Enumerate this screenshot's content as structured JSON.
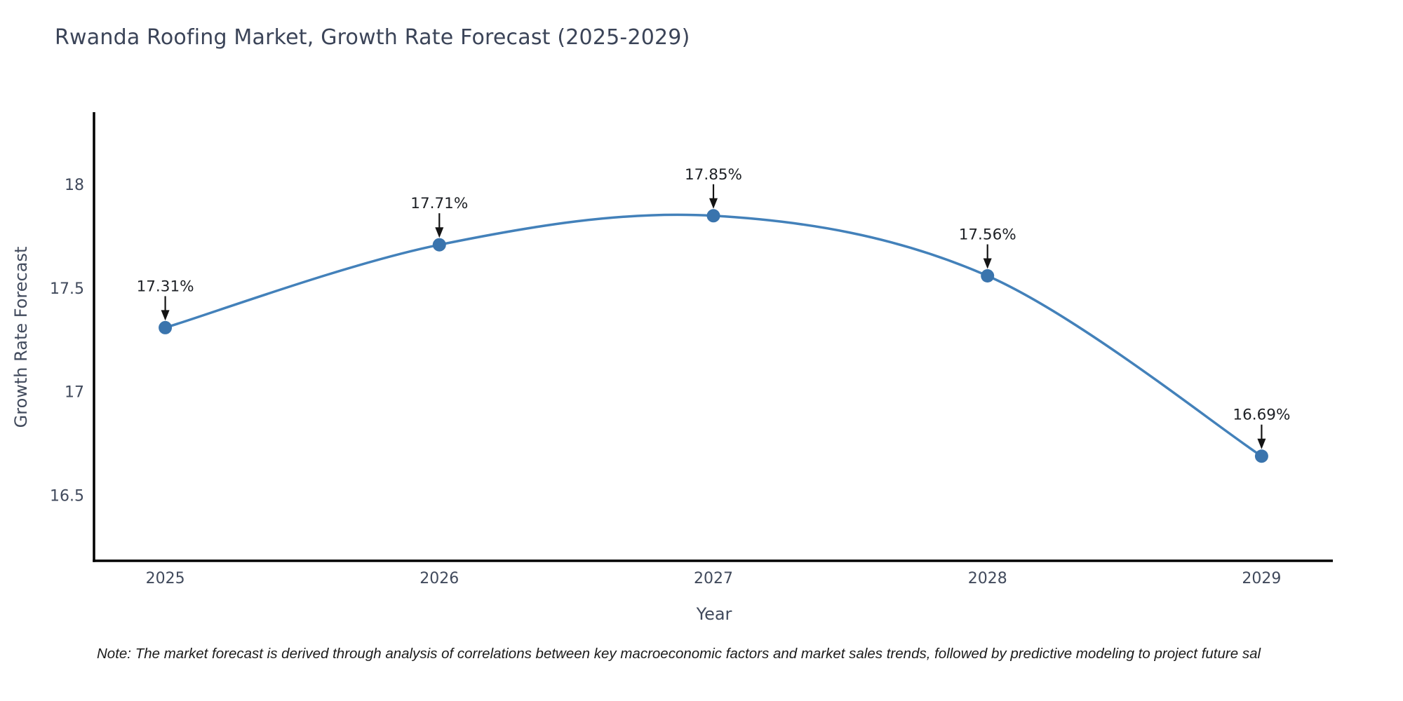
{
  "chart_data": {
    "type": "line",
    "title": "Rwanda Roofing Market, Growth Rate Forecast (2025-2029)",
    "xlabel": "Year",
    "ylabel": "Growth Rate Forecast",
    "x": [
      2025,
      2026,
      2027,
      2028,
      2029
    ],
    "xtick_labels": [
      "2025",
      "2026",
      "2027",
      "2028",
      "2029"
    ],
    "series": [
      {
        "name": "Growth Rate Forecast",
        "values": [
          17.31,
          17.71,
          17.85,
          17.56,
          16.69
        ]
      }
    ],
    "point_labels": [
      "17.31%",
      "17.71%",
      "17.85%",
      "17.56%",
      "16.69%"
    ],
    "yticks": [
      16.5,
      17,
      17.5,
      18
    ],
    "ytick_labels": [
      "16.5",
      "17",
      "17.5",
      "18"
    ],
    "xlim": [
      2024.74,
      2029.26
    ],
    "ylim": [
      16.185,
      18.35
    ],
    "curve": "spline",
    "grid": false,
    "legend": "none",
    "colors": {
      "line": "#4381ba",
      "marker": "#3a74ad",
      "arrow": "#141414",
      "axis": "#000000",
      "tick_text": "#414a5c",
      "title_text": "#3b4458",
      "annotation_text": "#1d2025"
    }
  },
  "note": {
    "text": "Note: The market forecast is derived through analysis of correlations between key macroeconomic factors and market sales trends, followed by predictive modeling to project future sal"
  }
}
